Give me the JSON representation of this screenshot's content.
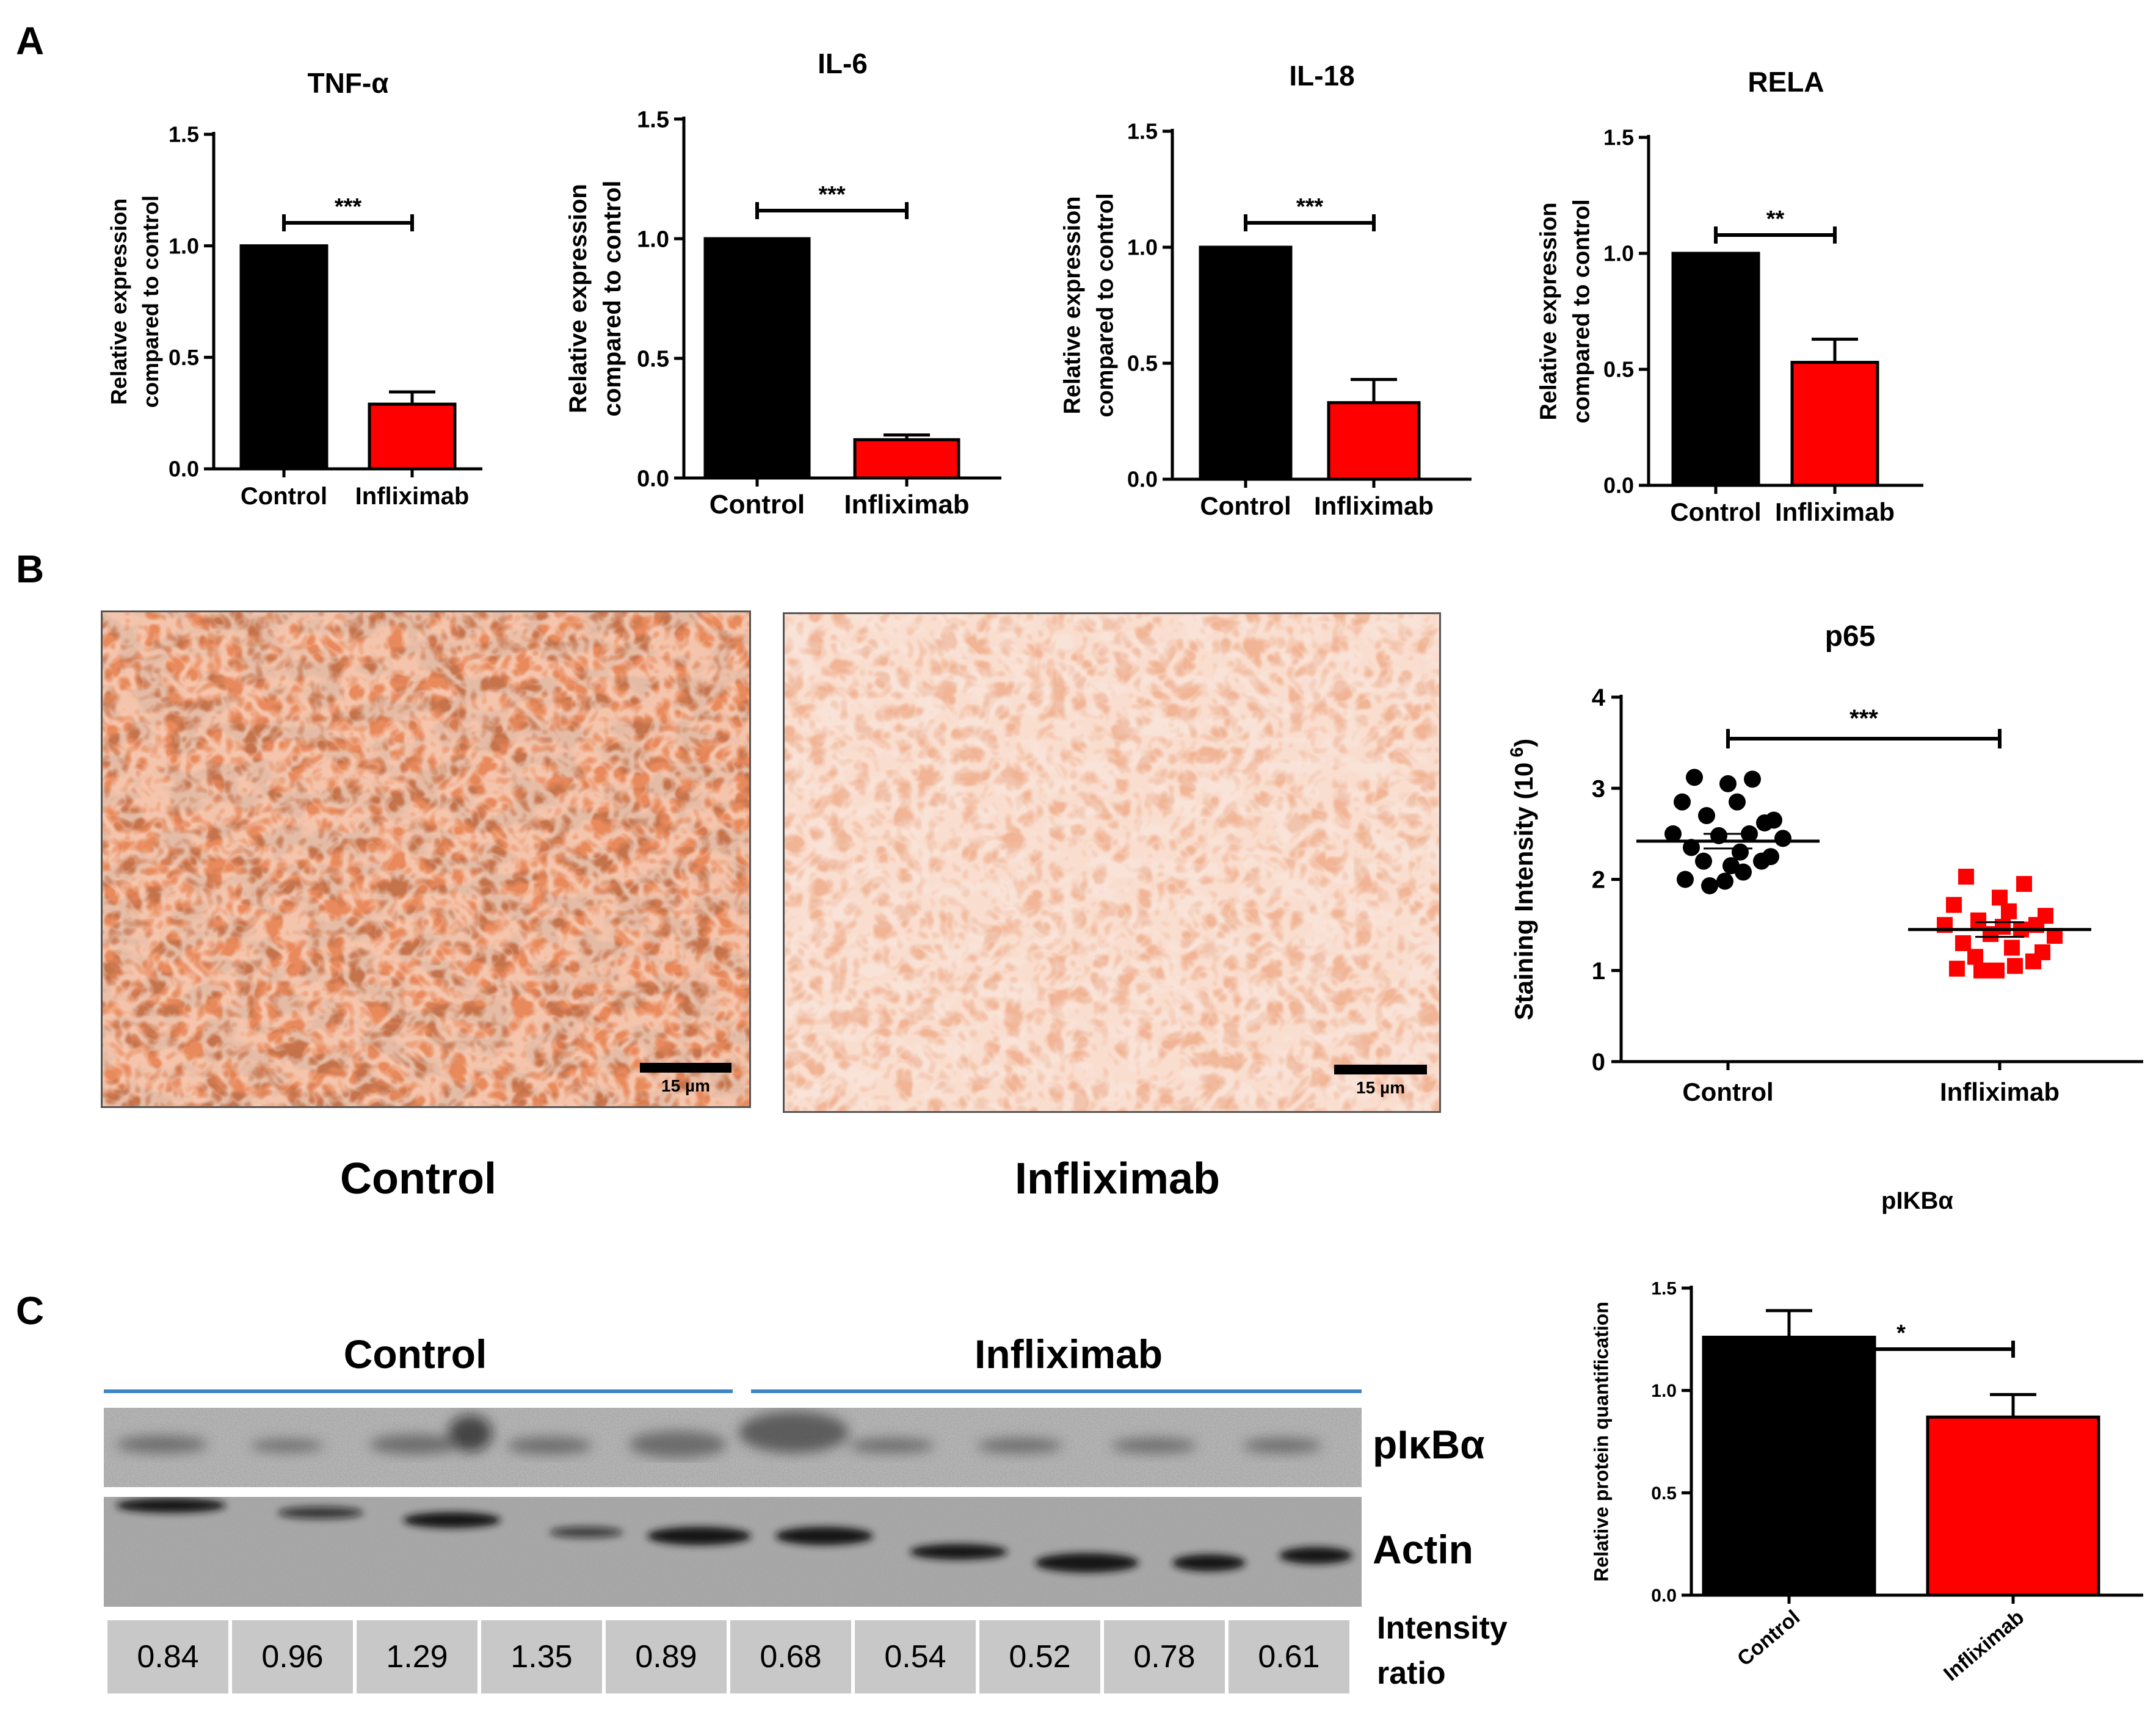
{
  "panels": {
    "a": "A",
    "b": "B",
    "c": "C"
  },
  "colors": {
    "control": "#000000",
    "infliximab": "#ff0000",
    "blot_line": "#3d85c6"
  },
  "chart_data": [
    {
      "id": "tnf",
      "type": "bar",
      "title": "TNF-α",
      "ylabel": [
        "Relative expression",
        "compared to control"
      ],
      "categories": [
        "Control",
        "Infliximab"
      ],
      "values": [
        1.0,
        0.29
      ],
      "errors": [
        0.0,
        0.055
      ],
      "ylim": [
        0,
        1.5
      ],
      "yticks": [
        "0.0",
        "0.5",
        "1.0",
        "1.5"
      ],
      "significance": "***"
    },
    {
      "id": "il6",
      "type": "bar",
      "title": "IL-6",
      "ylabel": [
        "Relative expression",
        "compared to control"
      ],
      "categories": [
        "Control",
        "Infliximab"
      ],
      "values": [
        1.0,
        0.16
      ],
      "errors": [
        0.0,
        0.02
      ],
      "ylim": [
        0,
        1.5
      ],
      "yticks": [
        "0.0",
        "0.5",
        "1.0",
        "1.5"
      ],
      "significance": "***"
    },
    {
      "id": "il18",
      "type": "bar",
      "title": "IL-18",
      "ylabel": [
        "Relative expression",
        "compared to control"
      ],
      "categories": [
        "Control",
        "Infliximab"
      ],
      "values": [
        1.0,
        0.33
      ],
      "errors": [
        0.0,
        0.1
      ],
      "ylim": [
        0,
        1.5
      ],
      "yticks": [
        "0.0",
        "0.5",
        "1.0",
        "1.5"
      ],
      "significance": "***"
    },
    {
      "id": "rela",
      "type": "bar",
      "title": "RELA",
      "ylabel": [
        "Relative expression",
        "compared to control"
      ],
      "categories": [
        "Control",
        "Infliximab"
      ],
      "values": [
        1.0,
        0.53
      ],
      "errors": [
        0.0,
        0.1
      ],
      "ylim": [
        0,
        1.5
      ],
      "yticks": [
        "0.0",
        "0.5",
        "1.0",
        "1.5"
      ],
      "significance": "**"
    },
    {
      "id": "p65",
      "type": "scatter",
      "title": "p65",
      "ylabel": "Staining Intensity (10",
      "ylabel_sup": "6",
      "ylabel_end": ")",
      "categories": [
        "Control",
        "Infliximab"
      ],
      "series": [
        {
          "name": "Control",
          "marker": "circle",
          "mean": 2.42,
          "values": [
            3.12,
            3.1,
            3.05,
            2.85,
            2.85,
            2.65,
            2.7,
            2.62,
            2.5,
            2.5,
            2.48,
            2.45,
            2.35,
            2.3,
            2.25,
            2.2,
            2.2,
            2.0,
            1.98,
            1.93,
            2.08,
            2.15
          ]
        },
        {
          "name": "Infliximab",
          "marker": "square",
          "mean": 1.45,
          "values": [
            2.03,
            1.95,
            1.8,
            1.72,
            1.65,
            1.6,
            1.55,
            1.5,
            1.5,
            1.45,
            1.4,
            1.38,
            1.3,
            1.25,
            1.2,
            1.15,
            1.1,
            1.02,
            1.0,
            1.0,
            1.05,
            1.48
          ]
        }
      ],
      "ylim": [
        0,
        4
      ],
      "yticks": [
        "0",
        "1",
        "2",
        "3",
        "4"
      ],
      "significance": "***"
    },
    {
      "id": "pikba",
      "type": "bar",
      "title": "pIKBα",
      "ylabel": "Relative protein quantification",
      "categories": [
        "Control",
        "Infliximab"
      ],
      "values": [
        1.26,
        0.87
      ],
      "errors": [
        0.13,
        0.11
      ],
      "ylim": [
        0,
        1.5
      ],
      "yticks": [
        "0.0",
        "0.5",
        "1.0",
        "1.5"
      ],
      "significance": "*"
    }
  ],
  "micrographs": {
    "control": {
      "caption": "Control",
      "scale": "15 µm"
    },
    "infliximab": {
      "caption": "Infliximab",
      "scale": "15 µm"
    }
  },
  "blot": {
    "group_control": "Control",
    "group_infliximab": "Infliximab",
    "band_labels": [
      "pIκBα",
      "Actin"
    ],
    "ratio_label": [
      "Intensity",
      "ratio"
    ],
    "ratios": [
      "0.84",
      "0.96",
      "1.29",
      "1.35",
      "0.89",
      "0.68",
      "0.54",
      "0.52",
      "0.78",
      "0.61"
    ]
  }
}
